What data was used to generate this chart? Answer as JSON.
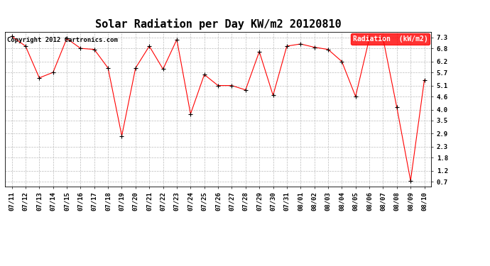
{
  "title": "Solar Radiation per Day KW/m2 20120810",
  "copyright_text": "Copyright 2012 Cartronics.com",
  "legend_label": "Radiation  (kW/m2)",
  "x_labels": [
    "07/11",
    "07/12",
    "07/13",
    "07/14",
    "07/15",
    "07/16",
    "07/17",
    "07/18",
    "07/19",
    "07/20",
    "07/21",
    "07/22",
    "07/23",
    "07/24",
    "07/25",
    "07/26",
    "07/27",
    "07/28",
    "07/29",
    "07/30",
    "07/31",
    "08/01",
    "08/02",
    "08/03",
    "08/04",
    "08/05",
    "08/06",
    "08/07",
    "08/08",
    "08/09",
    "08/10"
  ],
  "y_values": [
    7.35,
    6.9,
    5.45,
    5.7,
    7.25,
    6.8,
    6.75,
    5.9,
    2.8,
    5.9,
    6.9,
    5.85,
    7.2,
    3.8,
    5.6,
    5.1,
    5.1,
    4.9,
    6.65,
    4.65,
    6.9,
    7.0,
    6.85,
    6.75,
    6.2,
    4.6,
    7.25,
    7.25,
    4.1,
    0.75,
    5.35
  ],
  "y_ticks": [
    0.7,
    1.2,
    1.8,
    2.3,
    2.9,
    3.5,
    4.0,
    4.6,
    5.1,
    5.7,
    6.2,
    6.8,
    7.3
  ],
  "ylim": [
    0.5,
    7.55
  ],
  "line_color": "red",
  "marker_color": "black",
  "background_color": "#ffffff",
  "plot_bg_color": "#ffffff",
  "grid_color": "#bbbbbb",
  "title_fontsize": 11,
  "tick_fontsize": 6.5,
  "copyright_fontsize": 6.5,
  "legend_bg_color": "red",
  "legend_text_color": "white",
  "legend_fontsize": 7
}
